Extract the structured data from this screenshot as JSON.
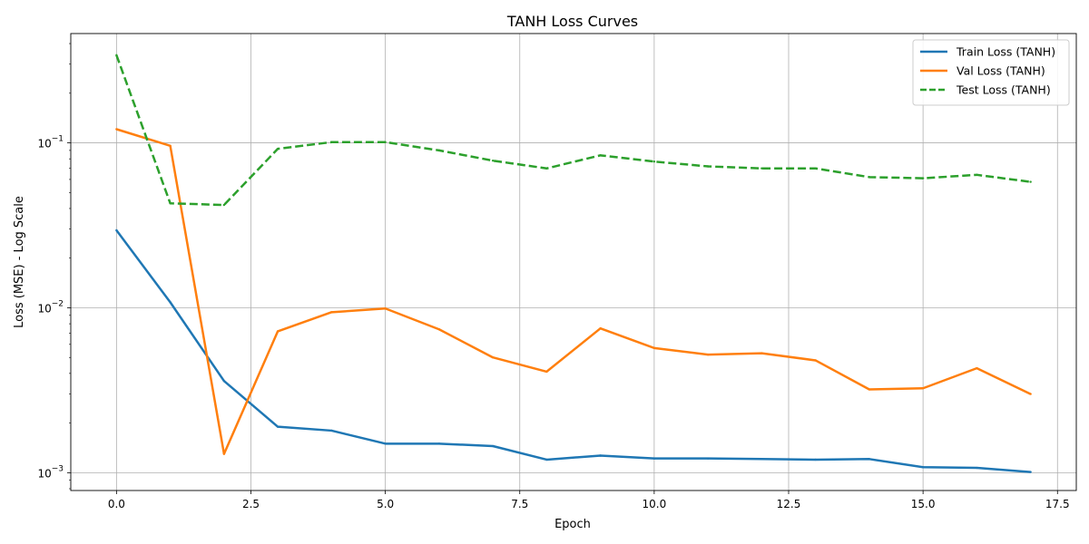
{
  "chart_data": {
    "type": "line",
    "title": "TANH Loss Curves",
    "xlabel": "Epoch",
    "ylabel": "Loss (MSE) - Log Scale",
    "yscale": "log",
    "xlim": [
      -0.85,
      17.85
    ],
    "ylim": [
      0.00078,
      0.46
    ],
    "grid": true,
    "legend_position": "top-right",
    "x": [
      0,
      1,
      2,
      3,
      4,
      5,
      6,
      7,
      8,
      9,
      10,
      11,
      12,
      13,
      14,
      15,
      16,
      17
    ],
    "x_ticks": [
      {
        "value": 0,
        "label": "0.0"
      },
      {
        "value": 2.5,
        "label": "2.5"
      },
      {
        "value": 5,
        "label": "5.0"
      },
      {
        "value": 7.5,
        "label": "7.5"
      },
      {
        "value": 10,
        "label": "10.0"
      },
      {
        "value": 12.5,
        "label": "12.5"
      },
      {
        "value": 15,
        "label": "15.0"
      },
      {
        "value": 17.5,
        "label": "17.5"
      }
    ],
    "y_ticks": [
      {
        "value": 0.001,
        "base": "10",
        "exp": "−3"
      },
      {
        "value": 0.01,
        "base": "10",
        "exp": "−2"
      },
      {
        "value": 0.1,
        "base": "10",
        "exp": "−1"
      }
    ],
    "series": [
      {
        "name": "Train Loss (TANH)",
        "color": "#1f77b4",
        "dash": "solid",
        "values": [
          0.0295,
          0.0108,
          0.0036,
          0.0019,
          0.0018,
          0.0015,
          0.0015,
          0.00145,
          0.0012,
          0.00127,
          0.00122,
          0.00122,
          0.00121,
          0.0012,
          0.00121,
          0.00108,
          0.00107,
          0.00101
        ]
      },
      {
        "name": "Val Loss (TANH)",
        "color": "#ff7f0e",
        "dash": "solid",
        "values": [
          0.121,
          0.096,
          0.0013,
          0.0072,
          0.0094,
          0.0099,
          0.0074,
          0.005,
          0.0041,
          0.0075,
          0.0057,
          0.0052,
          0.0053,
          0.0048,
          0.0032,
          0.00325,
          0.0043,
          0.003
        ]
      },
      {
        "name": "Test Loss (TANH)",
        "color": "#2ca02c",
        "dash": "dashed",
        "values": [
          0.34,
          0.043,
          0.042,
          0.092,
          0.101,
          0.101,
          0.09,
          0.078,
          0.07,
          0.084,
          0.077,
          0.072,
          0.07,
          0.07,
          0.062,
          0.061,
          0.064,
          0.058
        ]
      }
    ]
  }
}
